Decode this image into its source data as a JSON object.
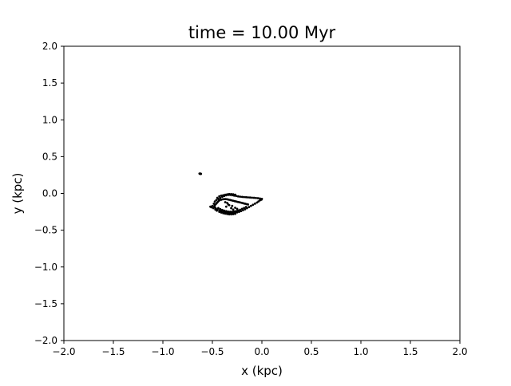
{
  "chart_data": {
    "type": "scatter",
    "title": "time = 10.00 Myr",
    "xlabel": "x (kpc)",
    "ylabel": "y (kpc)",
    "xlim": [
      -2.0,
      2.0
    ],
    "ylim": [
      -2.0,
      2.0
    ],
    "xticks": [
      -2.0,
      -1.5,
      -1.0,
      -0.5,
      0.0,
      0.5,
      1.0,
      1.5,
      2.0
    ],
    "yticks": [
      -2.0,
      -1.5,
      -1.0,
      -0.5,
      0.0,
      0.5,
      1.0,
      1.5,
      2.0
    ],
    "xtick_labels": [
      "−2.0",
      "−1.5",
      "−1.0",
      "−0.5",
      "0.0",
      "0.5",
      "1.0",
      "1.5",
      "2.0"
    ],
    "ytick_labels": [
      "−2.0",
      "−1.5",
      "−1.0",
      "−0.5",
      "0.0",
      "0.5",
      "1.0",
      "1.5",
      "2.0"
    ],
    "grid": false,
    "legend": "none",
    "marker_color": "#000000",
    "series": [
      {
        "points": [
          [
            -0.63,
            0.27
          ],
          [
            -0.62,
            0.27
          ],
          [
            -0.625,
            0.265
          ],
          [
            -0.615,
            0.265
          ],
          [
            -0.5,
            -0.17
          ],
          [
            -0.485,
            -0.14
          ],
          [
            -0.475,
            -0.11
          ],
          [
            -0.46,
            -0.09
          ],
          [
            -0.44,
            -0.075
          ],
          [
            -0.42,
            -0.06
          ],
          [
            -0.4,
            -0.045
          ],
          [
            -0.38,
            -0.035
          ],
          [
            -0.36,
            -0.025
          ],
          [
            -0.34,
            -0.02
          ],
          [
            -0.32,
            -0.02
          ],
          [
            -0.3,
            -0.025
          ],
          [
            -0.28,
            -0.03
          ],
          [
            -0.26,
            -0.035
          ],
          [
            -0.24,
            -0.04
          ],
          [
            -0.22,
            -0.045
          ],
          [
            -0.2,
            -0.048
          ],
          [
            -0.18,
            -0.05
          ],
          [
            -0.16,
            -0.052
          ],
          [
            -0.14,
            -0.054
          ],
          [
            -0.12,
            -0.056
          ],
          [
            -0.1,
            -0.058
          ],
          [
            -0.08,
            -0.06
          ],
          [
            -0.06,
            -0.062
          ],
          [
            -0.04,
            -0.065
          ],
          [
            -0.02,
            -0.07
          ],
          [
            0.0,
            -0.075
          ],
          [
            -0.005,
            -0.085
          ],
          [
            -0.02,
            -0.095
          ],
          [
            -0.035,
            -0.11
          ],
          [
            -0.05,
            -0.125
          ],
          [
            -0.07,
            -0.14
          ],
          [
            -0.09,
            -0.155
          ],
          [
            -0.11,
            -0.17
          ],
          [
            -0.13,
            -0.185
          ],
          [
            -0.15,
            -0.2
          ],
          [
            -0.17,
            -0.215
          ],
          [
            -0.19,
            -0.228
          ],
          [
            -0.21,
            -0.24
          ],
          [
            -0.23,
            -0.25
          ],
          [
            -0.25,
            -0.258
          ],
          [
            -0.27,
            -0.265
          ],
          [
            -0.29,
            -0.27
          ],
          [
            -0.31,
            -0.272
          ],
          [
            -0.33,
            -0.27
          ],
          [
            -0.35,
            -0.265
          ],
          [
            -0.37,
            -0.258
          ],
          [
            -0.39,
            -0.25
          ],
          [
            -0.41,
            -0.24
          ],
          [
            -0.43,
            -0.23
          ],
          [
            -0.45,
            -0.218
          ],
          [
            -0.465,
            -0.205
          ],
          [
            -0.475,
            -0.19
          ],
          [
            -0.48,
            -0.175
          ],
          [
            -0.475,
            -0.16
          ],
          [
            -0.465,
            -0.145
          ],
          [
            -0.455,
            -0.13
          ],
          [
            -0.445,
            -0.115
          ],
          [
            -0.435,
            -0.1
          ],
          [
            -0.425,
            -0.09
          ],
          [
            -0.41,
            -0.085
          ],
          [
            -0.395,
            -0.08
          ],
          [
            -0.38,
            -0.078
          ],
          [
            -0.365,
            -0.078
          ],
          [
            -0.35,
            -0.08
          ],
          [
            -0.335,
            -0.085
          ],
          [
            -0.32,
            -0.09
          ],
          [
            -0.305,
            -0.095
          ],
          [
            -0.29,
            -0.1
          ],
          [
            -0.275,
            -0.105
          ],
          [
            -0.26,
            -0.11
          ],
          [
            -0.245,
            -0.115
          ],
          [
            -0.23,
            -0.12
          ],
          [
            -0.215,
            -0.125
          ],
          [
            -0.2,
            -0.13
          ],
          [
            -0.185,
            -0.135
          ],
          [
            -0.17,
            -0.14
          ],
          [
            -0.155,
            -0.145
          ],
          [
            -0.14,
            -0.15
          ],
          [
            -0.44,
            -0.2
          ],
          [
            -0.42,
            -0.215
          ],
          [
            -0.4,
            -0.225
          ],
          [
            -0.38,
            -0.235
          ],
          [
            -0.36,
            -0.242
          ],
          [
            -0.34,
            -0.248
          ],
          [
            -0.32,
            -0.25
          ],
          [
            -0.3,
            -0.25
          ],
          [
            -0.28,
            -0.245
          ],
          [
            -0.26,
            -0.24
          ],
          [
            -0.24,
            -0.232
          ],
          [
            -0.22,
            -0.222
          ],
          [
            -0.2,
            -0.21
          ],
          [
            -0.18,
            -0.198
          ],
          [
            -0.16,
            -0.185
          ],
          [
            -0.35,
            -0.13
          ],
          [
            -0.34,
            -0.15
          ],
          [
            -0.33,
            -0.16
          ],
          [
            -0.3,
            -0.17
          ],
          [
            -0.29,
            -0.22
          ],
          [
            -0.27,
            -0.195
          ],
          [
            -0.31,
            -0.2
          ],
          [
            -0.25,
            -0.21
          ],
          [
            -0.37,
            -0.12
          ],
          [
            -0.36,
            -0.18
          ],
          [
            -0.52,
            -0.18
          ],
          [
            -0.51,
            -0.19
          ],
          [
            -0.49,
            -0.2
          ],
          [
            -0.47,
            -0.22
          ],
          [
            -0.455,
            -0.235
          ],
          [
            -0.43,
            -0.25
          ],
          [
            -0.41,
            -0.26
          ],
          [
            -0.39,
            -0.27
          ],
          [
            -0.37,
            -0.275
          ],
          [
            -0.35,
            -0.28
          ],
          [
            -0.33,
            -0.285
          ],
          [
            -0.31,
            -0.285
          ],
          [
            -0.29,
            -0.282
          ],
          [
            -0.27,
            -0.278
          ],
          [
            -0.45,
            -0.06
          ],
          [
            -0.43,
            -0.04
          ],
          [
            -0.41,
            -0.03
          ],
          [
            -0.39,
            -0.025
          ],
          [
            -0.37,
            -0.018
          ],
          [
            -0.35,
            -0.012
          ],
          [
            -0.33,
            -0.008
          ],
          [
            -0.31,
            -0.01
          ],
          [
            -0.29,
            -0.012
          ],
          [
            -0.27,
            -0.018
          ]
        ]
      }
    ]
  }
}
